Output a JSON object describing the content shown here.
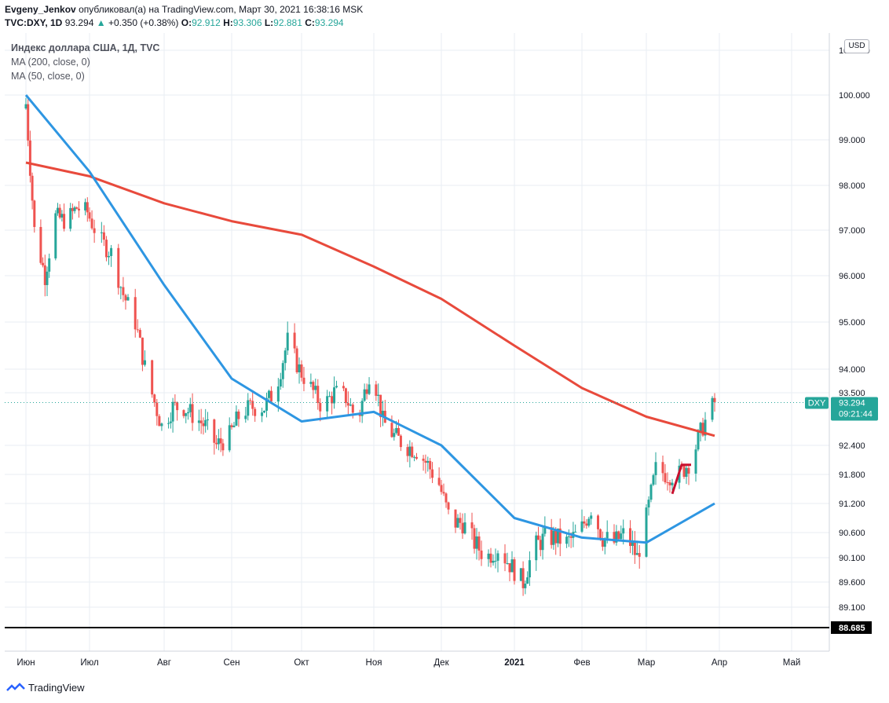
{
  "header": {
    "author": "Evgeny_Jenkov",
    "published_on": "опубликовал(а) на TradingView.com, Март 30, 2021 16:38:16 MSK",
    "symbol": "TVC:DXY, 1D",
    "last": "93.294",
    "change_arrow": "▲",
    "change": "+0.350 (+0.38%)",
    "o_label": "O:",
    "o": "92.912",
    "h_label": "H:",
    "h": "93.306",
    "l_label": "L:",
    "l": "92.881",
    "c_label": "C:",
    "c": "93.294"
  },
  "legend": {
    "title": "Индекс доллара США, 1Д, TVC",
    "ma200": "MA (200, close, 0)",
    "ma50": "MA (50, close, 0)"
  },
  "currency_button": "USD",
  "footer_logo": "TradingView",
  "colors": {
    "up": "#26a69a",
    "down": "#ef5350",
    "ma200": "#e84a3c",
    "ma50": "#2e96e2",
    "grid": "#e8eef3",
    "price_tag": "#26a69a",
    "hline": "#000000",
    "drawing": "#c8102e"
  },
  "chart_data": {
    "type": "candlestick",
    "symbol": "DXY",
    "y_ticks": [
      89.1,
      89.6,
      90.1,
      90.6,
      91.2,
      91.8,
      92.4,
      93.5,
      94.0,
      95.0,
      96.0,
      97.0,
      98.0,
      99.0,
      100.0,
      101.0
    ],
    "y_tick_labels": [
      "89.100",
      "89.600",
      "90.100",
      "90.600",
      "91.200",
      "91.800",
      "92.400",
      "93.500",
      "94.000",
      "95.000",
      "96.000",
      "97.000",
      "98.000",
      "99.000",
      "100.000",
      "101.000"
    ],
    "x_labels": [
      "Июн",
      "Июл",
      "Авг",
      "Сен",
      "Окт",
      "Ноя",
      "Дек",
      "2021",
      "Фев",
      "Мар",
      "Апр",
      "Май"
    ],
    "last_price": {
      "label": "DXY",
      "value": "93.294",
      "countdown": "09:21:44"
    },
    "horizontal_line": {
      "value": 88.685,
      "label": "88.685"
    },
    "close_path": [
      [
        "2020-06-01",
        99.8
      ],
      [
        "2020-06-05",
        97.0
      ],
      [
        "2020-06-10",
        96.0
      ],
      [
        "2020-06-15",
        97.3
      ],
      [
        "2020-06-20",
        97.2
      ],
      [
        "2020-06-25",
        97.5
      ],
      [
        "2020-06-30",
        97.4
      ],
      [
        "2020-07-05",
        96.8
      ],
      [
        "2020-07-10",
        96.5
      ],
      [
        "2020-07-15",
        95.6
      ],
      [
        "2020-07-20",
        95.0
      ],
      [
        "2020-07-25",
        93.8
      ],
      [
        "2020-07-31",
        92.8
      ],
      [
        "2020-08-05",
        93.2
      ],
      [
        "2020-08-10",
        93.2
      ],
      [
        "2020-08-15",
        93.0
      ],
      [
        "2020-08-20",
        92.8
      ],
      [
        "2020-08-25",
        92.4
      ],
      [
        "2020-08-31",
        92.6
      ],
      [
        "2020-09-05",
        93.1
      ],
      [
        "2020-09-10",
        93.2
      ],
      [
        "2020-09-15",
        93.2
      ],
      [
        "2020-09-20",
        93.6
      ],
      [
        "2020-09-25",
        94.6
      ],
      [
        "2020-09-30",
        94.0
      ],
      [
        "2020-10-05",
        93.6
      ],
      [
        "2020-10-10",
        93.2
      ],
      [
        "2020-10-15",
        93.5
      ],
      [
        "2020-10-20",
        93.4
      ],
      [
        "2020-10-25",
        92.9
      ],
      [
        "2020-10-31",
        94.1
      ],
      [
        "2020-11-05",
        92.9
      ],
      [
        "2020-11-10",
        92.6
      ],
      [
        "2020-11-15",
        92.4
      ],
      [
        "2020-11-20",
        92.3
      ],
      [
        "2020-11-25",
        92.0
      ],
      [
        "2020-11-30",
        91.6
      ],
      [
        "2020-12-05",
        90.8
      ],
      [
        "2020-12-10",
        90.8
      ],
      [
        "2020-12-15",
        90.4
      ],
      [
        "2020-12-20",
        90.1
      ],
      [
        "2020-12-25",
        90.3
      ],
      [
        "2020-12-31",
        89.9
      ],
      [
        "2021-01-05",
        89.6
      ],
      [
        "2021-01-10",
        90.3
      ],
      [
        "2021-01-15",
        90.5
      ],
      [
        "2021-01-20",
        90.5
      ],
      [
        "2021-01-25",
        90.4
      ],
      [
        "2021-01-31",
        90.6
      ],
      [
        "2021-02-05",
        91.1
      ],
      [
        "2021-02-10",
        90.5
      ],
      [
        "2021-02-15",
        90.4
      ],
      [
        "2021-02-20",
        90.6
      ],
      [
        "2021-02-25",
        90.1
      ],
      [
        "2021-03-01",
        90.9
      ],
      [
        "2021-03-05",
        91.9
      ],
      [
        "2021-03-10",
        91.8
      ],
      [
        "2021-03-15",
        91.8
      ],
      [
        "2021-03-20",
        92.1
      ],
      [
        "2021-03-25",
        92.8
      ],
      [
        "2021-03-30",
        93.3
      ]
    ],
    "ma200": [
      [
        "2020-06-01",
        98.5
      ],
      [
        "2020-07-01",
        98.2
      ],
      [
        "2020-08-01",
        97.6
      ],
      [
        "2020-09-01",
        97.2
      ],
      [
        "2020-10-01",
        96.9
      ],
      [
        "2020-11-01",
        96.2
      ],
      [
        "2020-12-01",
        95.5
      ],
      [
        "2021-01-01",
        94.5
      ],
      [
        "2021-02-01",
        93.6
      ],
      [
        "2021-03-01",
        93.0
      ],
      [
        "2021-03-30",
        92.6
      ]
    ],
    "ma50": [
      [
        "2020-06-01",
        100.0
      ],
      [
        "2020-07-01",
        98.3
      ],
      [
        "2020-08-01",
        95.8
      ],
      [
        "2020-09-01",
        93.8
      ],
      [
        "2020-10-01",
        92.9
      ],
      [
        "2020-11-01",
        93.1
      ],
      [
        "2020-12-01",
        92.4
      ],
      [
        "2021-01-01",
        90.9
      ],
      [
        "2021-02-01",
        90.5
      ],
      [
        "2021-03-01",
        90.4
      ],
      [
        "2021-03-30",
        91.2
      ]
    ],
    "drawing": [
      [
        "2021-03-12",
        91.4
      ],
      [
        "2021-03-16",
        92.0
      ],
      [
        "2021-03-20",
        92.0
      ]
    ]
  }
}
